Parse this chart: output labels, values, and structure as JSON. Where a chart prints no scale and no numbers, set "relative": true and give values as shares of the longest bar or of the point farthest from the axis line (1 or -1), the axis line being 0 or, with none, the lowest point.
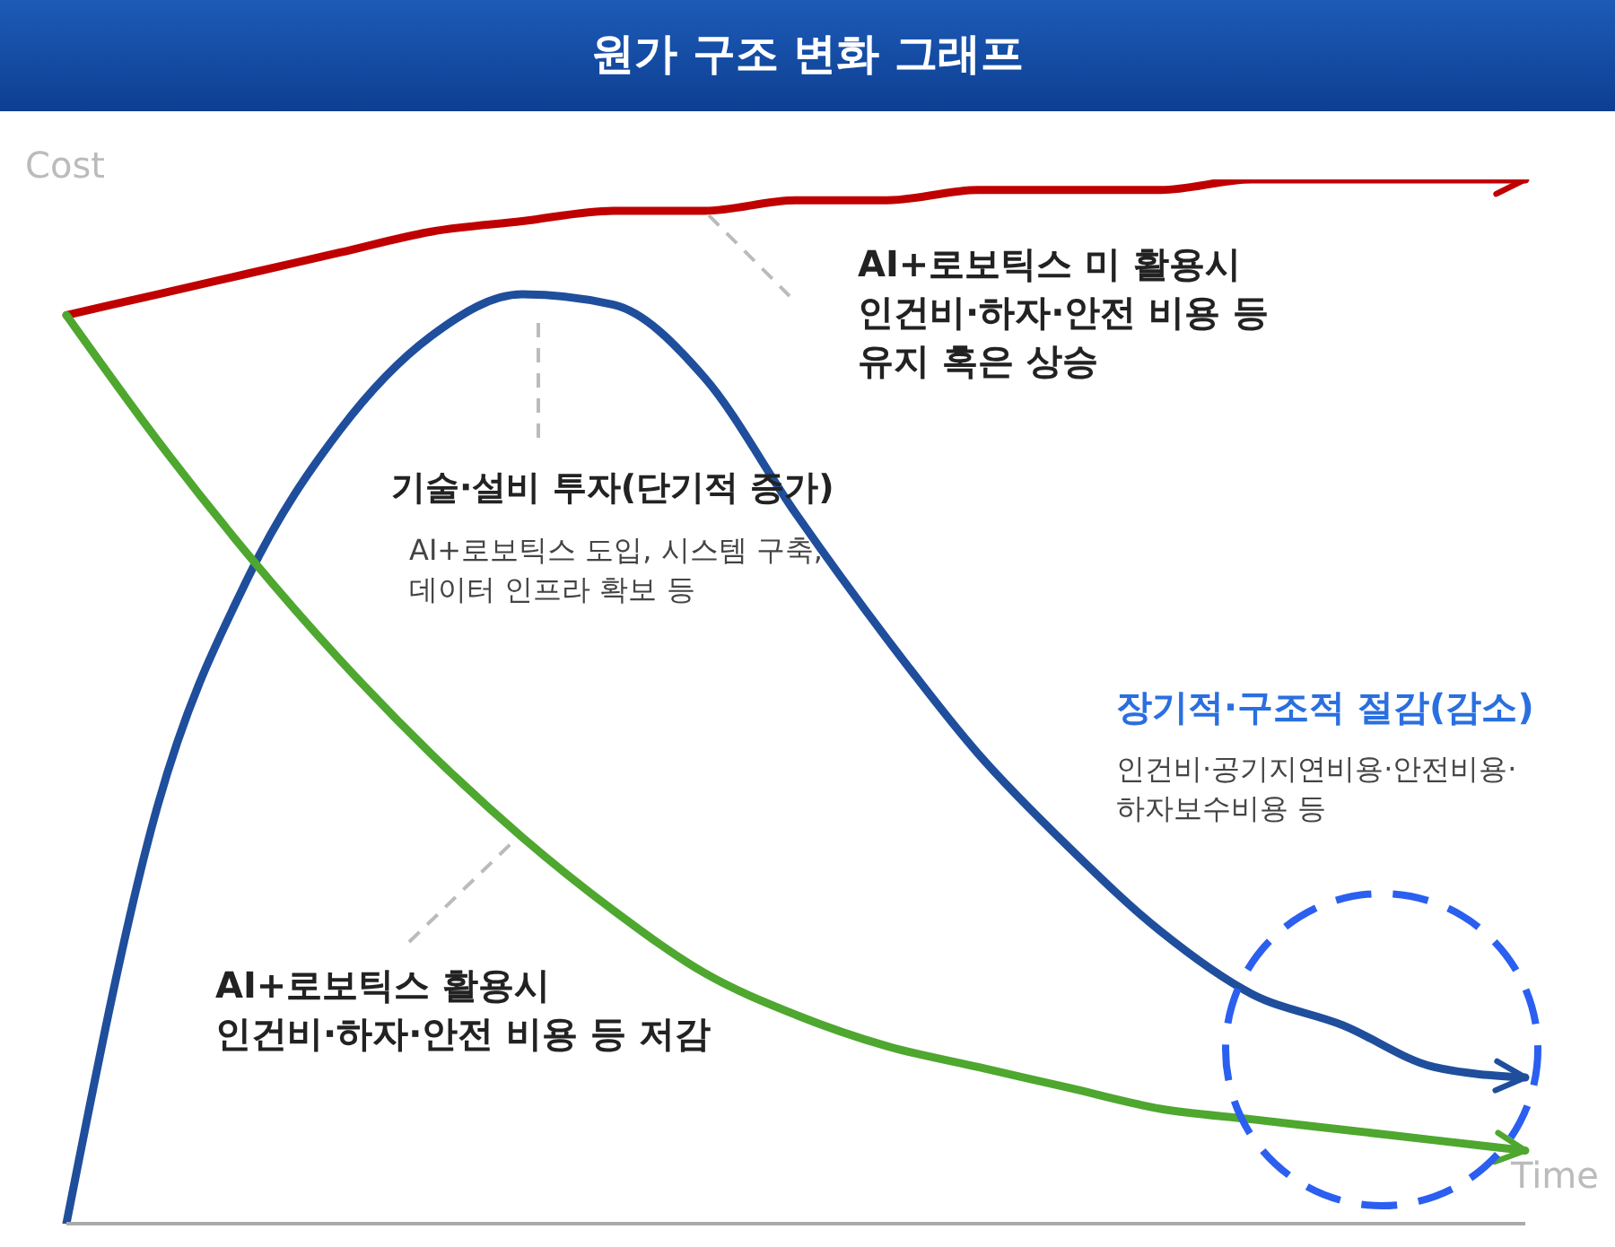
{
  "chart_data": {
    "type": "line",
    "title": "원가 구조 변화 그래프",
    "xlabel": "Time",
    "ylabel": "Cost",
    "relative": true,
    "categories": [
      null,
      null,
      null,
      null,
      null,
      null,
      null,
      null,
      null,
      null,
      null,
      null,
      null,
      null,
      null,
      null,
      null
    ],
    "series": [
      {
        "color": "#c00000",
        "values": [
          0.87,
          0.89,
          0.91,
          0.93,
          0.95,
          0.96,
          0.97,
          0.97,
          0.98,
          0.98,
          0.99,
          0.99,
          0.99,
          1,
          1,
          1,
          1
        ]
      },
      {
        "color": "#1f4e9c",
        "values": [
          0,
          0.4,
          0.62,
          0.76,
          0.85,
          0.89,
          0.88,
          0.81,
          0.68,
          0.56,
          0.45,
          0.36,
          0.28,
          0.22,
          0.19,
          0.15,
          0.14
        ]
      },
      {
        "color": "#4ea72e",
        "values": [
          0.87,
          0.75,
          0.64,
          0.54,
          0.45,
          0.37,
          0.3,
          0.24,
          0.2,
          0.17,
          0.15,
          0.13,
          0.11,
          0.1,
          0.09,
          0.08,
          0.07
        ]
      }
    ],
    "annotations": [
      "AI+로보틱스 미 활용시\n인건비·하자·안전 비용 등\n유지 혹은 상승",
      "기술·설비 투자(단기적 증가)",
      "AI+로보틱스 도입, 시스템 구축,\n데이터 인프라 확보 등",
      "장기적·구조적 절감(감소)",
      "인건비·공기지연비용·안전비용·\n하자보수비용 등",
      "AI+로보틱스 활용시\n인건비·하자·안전 비용 등 저감"
    ]
  }
}
